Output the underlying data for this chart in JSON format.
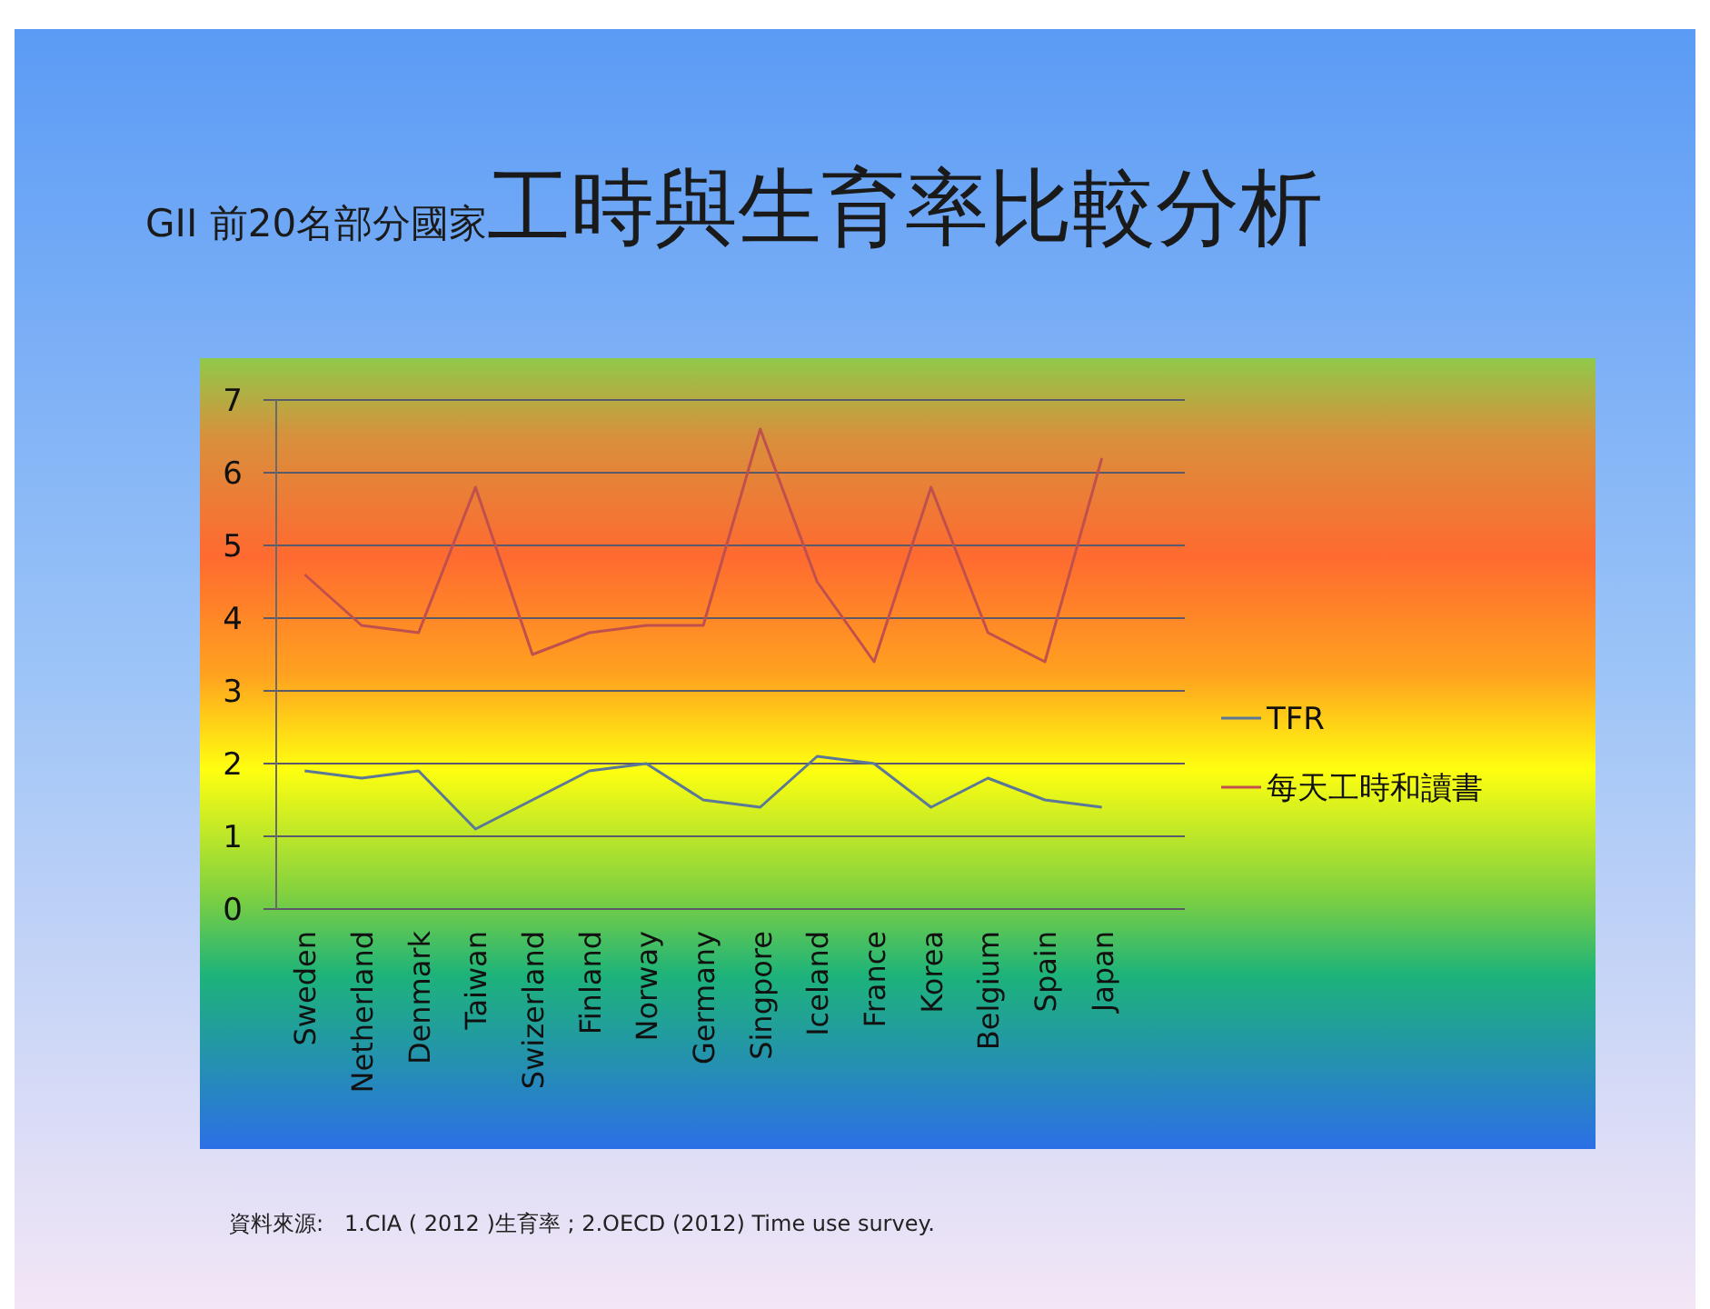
{
  "chart_data": {
    "type": "line",
    "subtitle": "GII 前20名部分國家",
    "title": "工時與生育率比較分析",
    "categories": [
      "Sweden",
      "Netherland",
      "Denmark",
      "Taiwan",
      "Swizerland",
      "Finland",
      "Norway",
      "Germany",
      "Singpore",
      "Iceland",
      "France",
      "Korea",
      "Belgium",
      "Spain",
      "Japan"
    ],
    "series": [
      {
        "name": "TFR",
        "color": "#5b7897",
        "values": [
          1.9,
          1.8,
          1.9,
          1.1,
          1.5,
          1.9,
          2.0,
          1.5,
          1.4,
          2.1,
          2.0,
          1.4,
          1.8,
          1.5,
          1.4
        ]
      },
      {
        "name": "每天工時和讀書",
        "color": "#c0504d",
        "values": [
          4.6,
          3.9,
          3.8,
          5.8,
          3.5,
          3.8,
          3.9,
          3.9,
          6.6,
          4.5,
          3.4,
          5.8,
          3.8,
          3.4,
          6.2
        ]
      }
    ],
    "ylim": [
      0,
      7
    ],
    "yticks": [
      0,
      1,
      2,
      3,
      4,
      5,
      6,
      7
    ],
    "grid": "y",
    "legend": "right",
    "marker": "none",
    "line_style": "solid",
    "annotations": [
      "資料來源:   1.CIA ( 2012 )生育率 ; 2.OECD (2012) Time use survey."
    ]
  }
}
